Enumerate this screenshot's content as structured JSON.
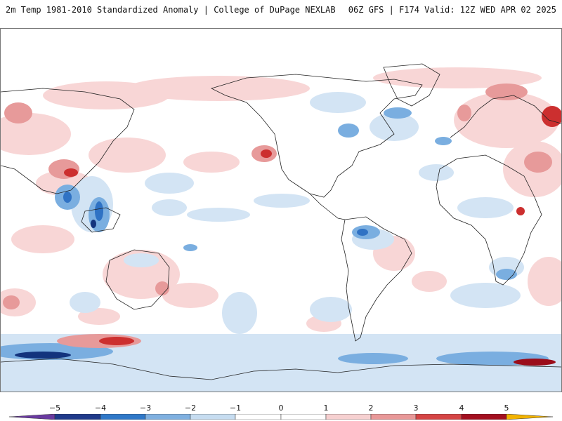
{
  "header": {
    "title_left": "2m Temp 1981-2010 Standardized Anomaly | College of DuPage NEXLAB",
    "title_right": "06Z GFS | F174 Valid: 12Z WED APR 02 2025"
  },
  "colorbar": {
    "labels": [
      "−5",
      "−4",
      "−3",
      "−2",
      "−1",
      "0",
      "1",
      "2",
      "3",
      "4",
      "5"
    ],
    "colors": {
      "neg5": "#6a3aa0",
      "neg4": "#1f3a8a",
      "neg3": "#2f78c8",
      "neg2": "#7fb0e0",
      "neg1": "#c6dcf0",
      "zero": "#ffffff",
      "pos1": "#f6d0d0",
      "pos2": "#e89898",
      "pos3": "#d54545",
      "pos4": "#a30f1f",
      "pos5": "#f2b300"
    }
  },
  "map": {
    "colors": {
      "coastline": "#222222",
      "warm_light": "#f8d6d6",
      "warm_mid": "#e79a9a",
      "warm_strong": "#cc2f2f",
      "warm_extreme": "#9b0d1a",
      "cold_light": "#d3e4f4",
      "cold_mid": "#7aaee0",
      "cold_strong": "#2f72c4",
      "cold_extreme": "#13337d"
    }
  }
}
